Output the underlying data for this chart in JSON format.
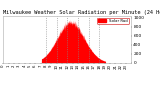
{
  "title": "Milwaukee Weather Solar Radiation per Minute (24 Hours)",
  "title_fontsize": 3.8,
  "bg_color": "#ffffff",
  "bar_color": "#ff0000",
  "legend_label": "Solar Rad",
  "legend_color": "#ff0000",
  "num_points": 1440,
  "peak_minute": 760,
  "peak_value": 900,
  "ylabel_fontsize": 3.2,
  "xlabel_fontsize": 2.8,
  "ylim": [
    0,
    1050
  ],
  "yticks": [
    0,
    200,
    400,
    600,
    800,
    1000
  ],
  "grid_minutes": [
    480,
    600,
    720,
    840,
    960,
    1080
  ],
  "sunrise": 430,
  "sunset": 1150,
  "noise_scale": 40,
  "spike_minute": 690,
  "spike_value": 950
}
